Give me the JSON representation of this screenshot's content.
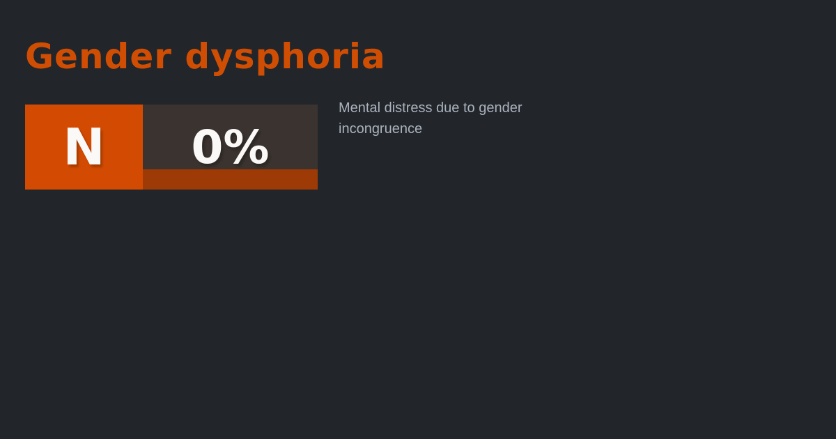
{
  "card": {
    "background_color": "#22252a",
    "title": "Gender dysphoria",
    "title_color": "#d04e03",
    "description": "Mental distress due to gender incongruence",
    "description_color": "#a9b2bc",
    "badge": {
      "category_letter": "N",
      "percent_value": "0%",
      "letter_box_color": "#d34b02",
      "percent_box_color": "#3a332f",
      "progress_bar_color": "#9e3a06"
    }
  }
}
